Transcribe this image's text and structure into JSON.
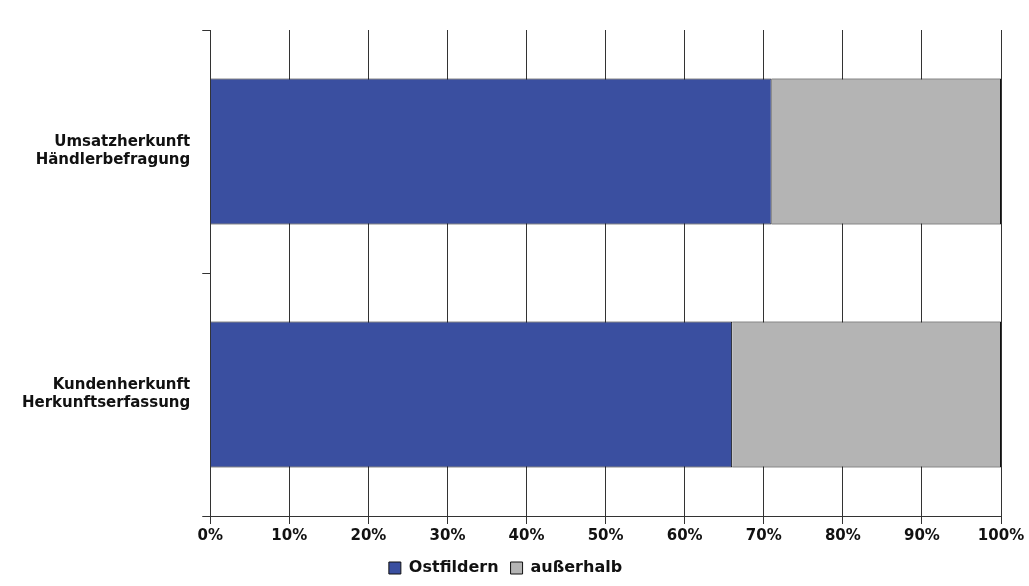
{
  "chart_data": {
    "type": "bar",
    "orientation": "horizontal",
    "stacked": true,
    "categories": [
      "Umsatzherkunft\nHändlerbefragung",
      "Kundenherkunft\nHerkunftserfassung"
    ],
    "series": [
      {
        "name": "Ostfildern",
        "color": "#3a4fa0",
        "values": [
          71,
          66
        ]
      },
      {
        "name": "außerhalb",
        "color": "#b4b4b4",
        "values": [
          29,
          34
        ]
      }
    ],
    "xlim": [
      0,
      100
    ],
    "xticks": [
      {
        "value": 0,
        "label": "0%"
      },
      {
        "value": 10,
        "label": "10%"
      },
      {
        "value": 20,
        "label": "20%"
      },
      {
        "value": 30,
        "label": "30%"
      },
      {
        "value": 40,
        "label": "40%"
      },
      {
        "value": 50,
        "label": "50%"
      },
      {
        "value": 60,
        "label": "60%"
      },
      {
        "value": 70,
        "label": "70%"
      },
      {
        "value": 80,
        "label": "80%"
      },
      {
        "value": 90,
        "label": "90%"
      },
      {
        "value": 100,
        "label": "100%"
      }
    ],
    "grid": "x",
    "legend": "bottom"
  }
}
